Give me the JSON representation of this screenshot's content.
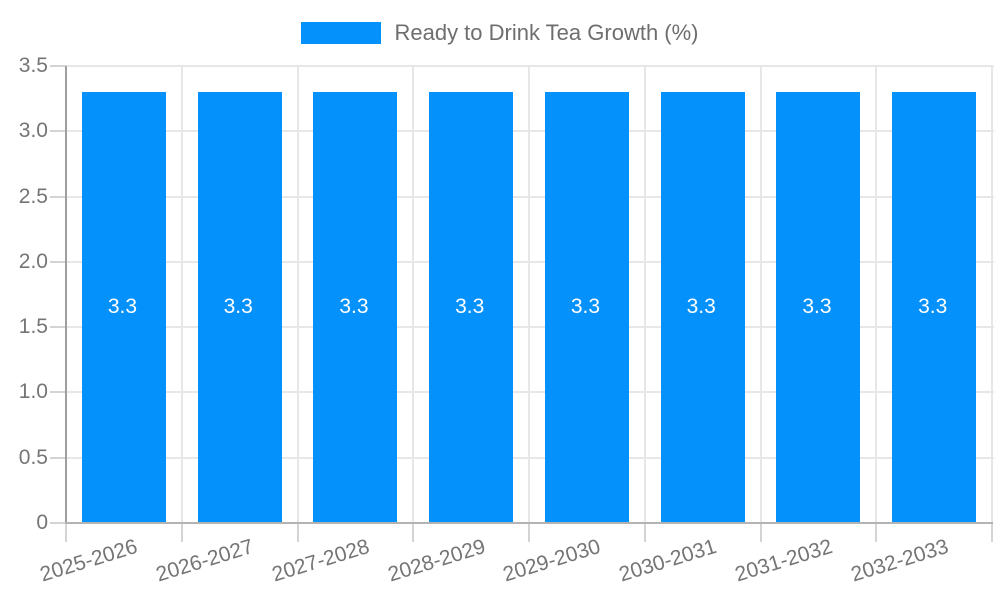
{
  "legend": {
    "label": "Ready to Drink Tea Growth (%)"
  },
  "chart_data": {
    "type": "bar",
    "title": "",
    "xlabel": "",
    "ylabel": "",
    "categories": [
      "2025-2026",
      "2026-2027",
      "2027-2028",
      "2028-2029",
      "2029-2030",
      "2030-2031",
      "2031-2032",
      "2032-2033"
    ],
    "series": [
      {
        "name": "Ready to Drink Tea Growth (%)",
        "values": [
          3.3,
          3.3,
          3.3,
          3.3,
          3.3,
          3.3,
          3.3,
          3.3
        ]
      }
    ],
    "value_labels": [
      "3.3",
      "3.3",
      "3.3",
      "3.3",
      "3.3",
      "3.3",
      "3.3",
      "3.3"
    ],
    "ylim": [
      0,
      3.5
    ],
    "yticks": [
      {
        "value": 0,
        "label": "0"
      },
      {
        "value": 0.5,
        "label": "0.5"
      },
      {
        "value": 1,
        "label": "1.0"
      },
      {
        "value": 1.5,
        "label": "1.5"
      },
      {
        "value": 2,
        "label": "2.0"
      },
      {
        "value": 2.5,
        "label": "2.5"
      },
      {
        "value": 3,
        "label": "3.0"
      },
      {
        "value": 3.5,
        "label": "3.5"
      }
    ],
    "grid": true,
    "legend_position": "top-center",
    "x_label_rotation_deg": -17,
    "colors": {
      "bar": "#0591FC",
      "value_label": "#FFFFFF",
      "axis_text": "#757575",
      "legend_text": "#6E6E6E",
      "gridline": "#E7E7E7",
      "tick": "#D4D4D4",
      "y_axis_line": "#9E9E9E",
      "x_axis_line": "#B3B3B3",
      "background": "#FFFFFF"
    }
  }
}
